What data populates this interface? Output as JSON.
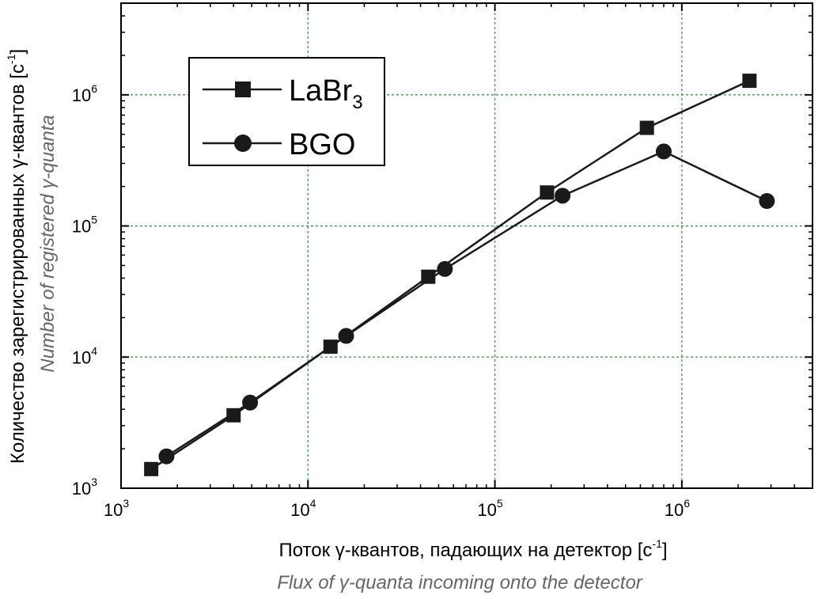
{
  "chart_data": {
    "type": "line",
    "xscale": "log",
    "yscale": "log",
    "xlim": [
      1000,
      5000000
    ],
    "ylim": [
      1000,
      5000000
    ],
    "grid": true,
    "grid_color": "#2e9e4a",
    "legend_position": "top-left",
    "xlabel": "Поток γ-квантов, падающих на детектор [c-1]",
    "xlabel_main": "Поток γ-квантов, падающих на детектор [c",
    "xlabel_exp": "-1",
    "xlabel_close": "]",
    "xlabel_en": "Flux of γ-quanta incoming onto the detector",
    "ylabel": "Количество зарегистрированных γ-квантов [c-1]",
    "ylabel_main": "Количество зарегистрированных γ-квантов [c",
    "ylabel_exp": "-1",
    "ylabel_close": "]",
    "ylabel_en": "Number of registered γ-quanta",
    "x_ticks": [
      {
        "value": 1000,
        "base": "10",
        "exp": "3"
      },
      {
        "value": 10000,
        "base": "10",
        "exp": "4"
      },
      {
        "value": 100000,
        "base": "10",
        "exp": "5"
      },
      {
        "value": 1000000,
        "base": "10",
        "exp": "6"
      }
    ],
    "y_ticks": [
      {
        "value": 1000,
        "base": "10",
        "exp": "3"
      },
      {
        "value": 10000,
        "base": "10",
        "exp": "4"
      },
      {
        "value": 100000,
        "base": "10",
        "exp": "5"
      },
      {
        "value": 1000000,
        "base": "10",
        "exp": "6"
      }
    ],
    "series": [
      {
        "name": "LaBr3",
        "name_main": "LaBr",
        "name_sub": "3",
        "marker": "square",
        "color": "#1a1a1a",
        "x": [
          1450,
          4000,
          13200,
          44000,
          190000,
          650000,
          2300000
        ],
        "y": [
          1400,
          3600,
          12000,
          41000,
          180000,
          560000,
          1280000
        ]
      },
      {
        "name": "BGO",
        "name_main": "BGO",
        "name_sub": "",
        "marker": "circle",
        "color": "#1a1a1a",
        "x": [
          1750,
          4900,
          16000,
          54000,
          230000,
          800000,
          2850000
        ],
        "y": [
          1750,
          4500,
          14500,
          47000,
          170000,
          370000,
          155000
        ]
      }
    ]
  }
}
